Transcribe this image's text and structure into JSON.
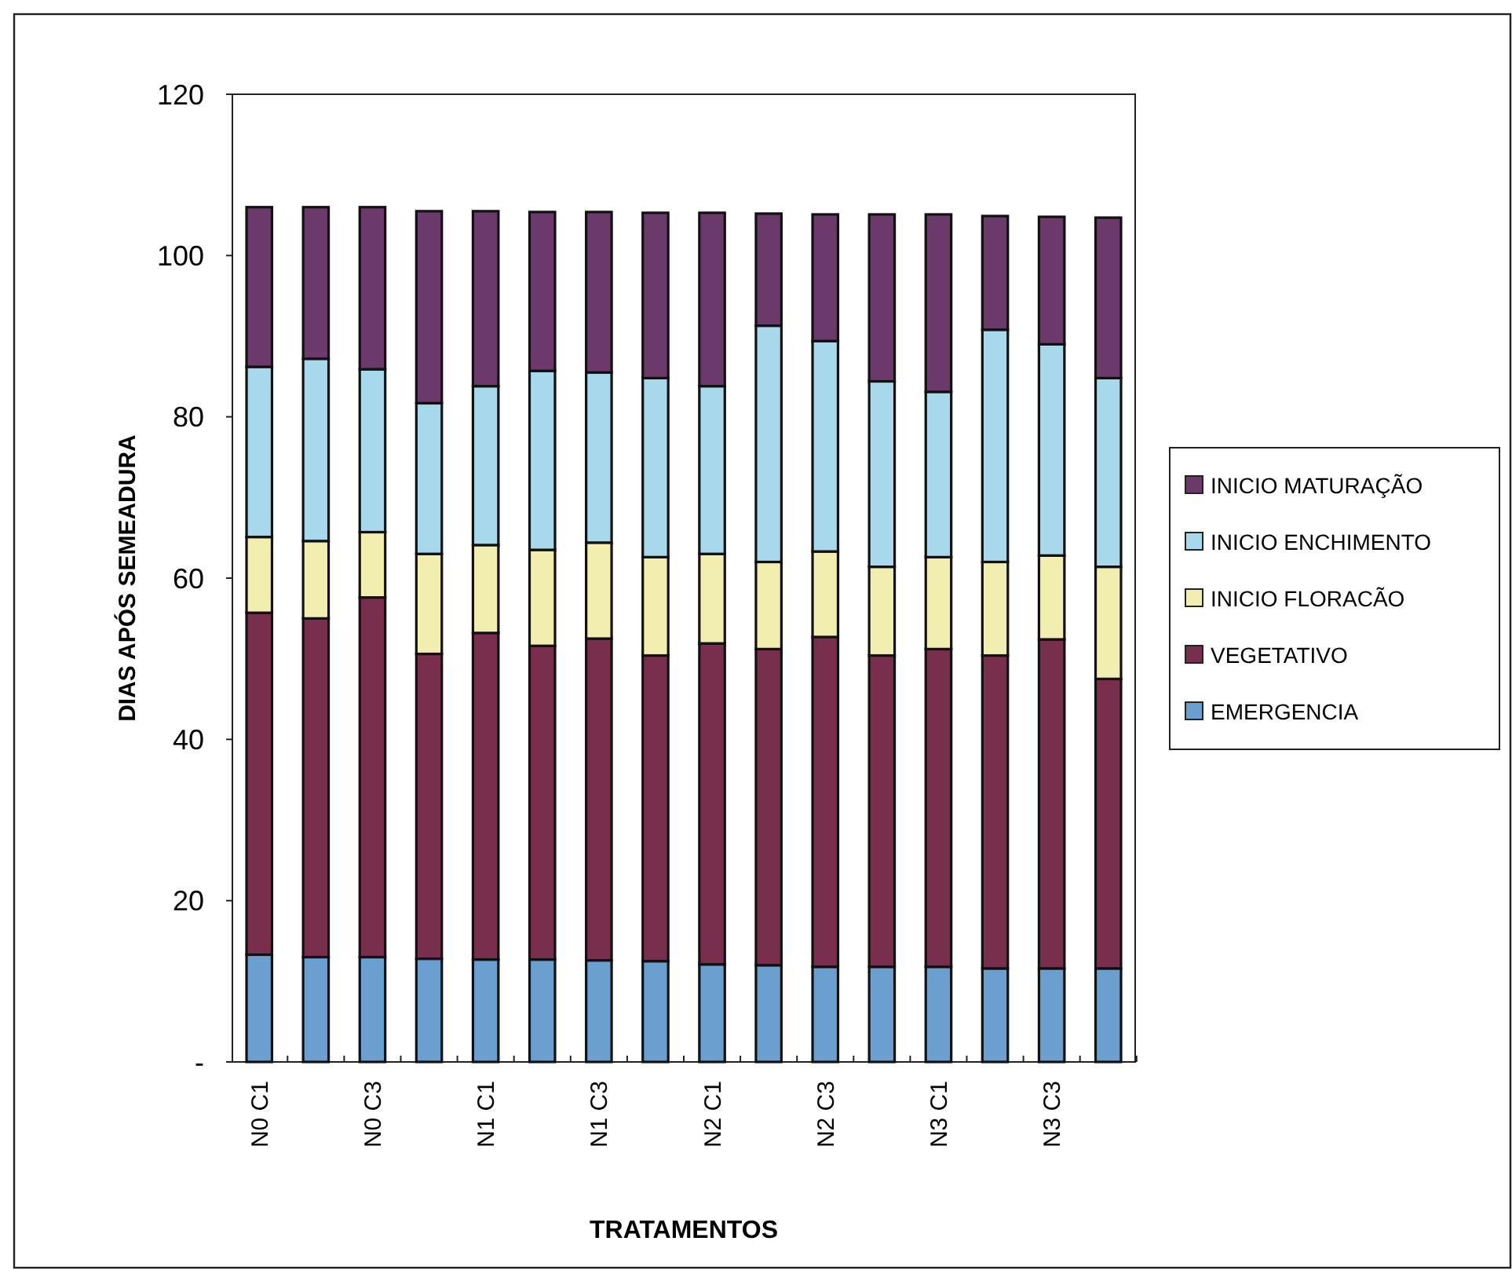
{
  "chart_data": {
    "type": "bar",
    "stacked": true,
    "xlabel": "TRATAMENTOS",
    "ylabel": "DIAS APÓS SEMEADURA",
    "categories": [
      "N0 C1",
      null,
      "N0 C3",
      null,
      "N1 C1",
      null,
      "N1 C3",
      null,
      "N2 C1",
      null,
      "N2 C3",
      null,
      "N3 C1",
      null,
      "N3 C3",
      null
    ],
    "ylim": [
      0,
      120
    ],
    "yticks": [
      {
        "value": 0,
        "label": "-"
      },
      20,
      40,
      60,
      80,
      100,
      120
    ],
    "legend": "right",
    "grid": false,
    "series": [
      {
        "name": "EMERGENCIA",
        "color": "#6a9fd0",
        "values": [
          13.3,
          13.0,
          13.0,
          12.8,
          12.7,
          12.7,
          12.6,
          12.5,
          12.1,
          12.0,
          11.8,
          11.8,
          11.8,
          11.6,
          11.6,
          11.6
        ]
      },
      {
        "name": "VEGETATIVO",
        "color": "#7a2e4e",
        "values": [
          42.4,
          42.0,
          44.6,
          37.8,
          40.5,
          38.9,
          39.9,
          37.9,
          39.8,
          39.2,
          40.9,
          38.6,
          39.4,
          38.8,
          40.8,
          35.9
        ]
      },
      {
        "name": "INICIO FLORACÃO",
        "color": "#f2eeb0",
        "values": [
          9.4,
          9.6,
          8.1,
          12.4,
          10.9,
          11.9,
          11.9,
          12.2,
          11.1,
          10.8,
          10.6,
          11.0,
          11.4,
          11.6,
          10.4,
          13.9
        ]
      },
      {
        "name": "INICIO ENCHIMENTO",
        "color": "#a8d8ec",
        "values": [
          21.1,
          22.6,
          20.2,
          18.7,
          19.7,
          22.2,
          21.1,
          22.2,
          20.8,
          29.3,
          26.1,
          23.0,
          20.5,
          28.8,
          26.2,
          23.4
        ]
      },
      {
        "name": "INICIO MATURAÇÃO",
        "color": "#6b3a6b",
        "values": [
          19.8,
          18.8,
          20.1,
          23.8,
          21.7,
          19.7,
          19.9,
          20.5,
          21.5,
          13.9,
          15.7,
          20.7,
          22.0,
          14.1,
          15.8,
          19.9
        ]
      }
    ]
  }
}
